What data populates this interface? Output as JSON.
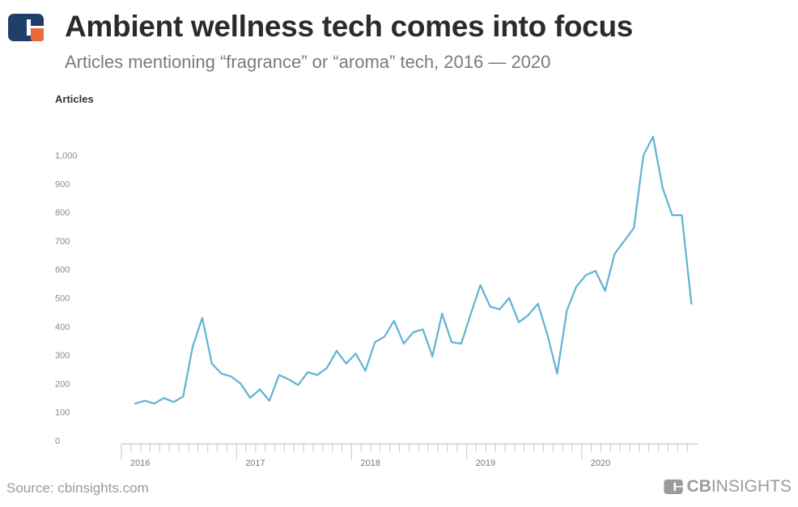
{
  "header": {
    "title": "Ambient wellness tech comes into focus",
    "subtitle": "Articles mentioning “fragrance” or “aroma” tech, 2016 — 2020"
  },
  "footer": {
    "source": "Source: cbinsights.com",
    "brand_bold": "CB",
    "brand_rest": "INSIGHTS"
  },
  "colors": {
    "line": "#5fb3d3",
    "logo_blue": "#1f3f6a",
    "logo_orange": "#ea6a36"
  },
  "chart_data": {
    "type": "line",
    "title": "Ambient wellness tech comes into focus",
    "subtitle": "Articles mentioning “fragrance” or “aroma” tech, 2016 — 2020",
    "xlabel": "",
    "ylabel": "Articles",
    "ylim": [
      0,
      1000
    ],
    "yticks": [
      0,
      100,
      200,
      300,
      400,
      500,
      600,
      700,
      800,
      900,
      1000
    ],
    "grid": false,
    "year_labels": [
      "2016",
      "2017",
      "2018",
      "2019",
      "2020"
    ],
    "series": [
      {
        "name": "Articles",
        "start": "2016-01",
        "frequency": "monthly",
        "values": [
          130,
          140,
          130,
          150,
          135,
          155,
          330,
          430,
          270,
          235,
          225,
          200,
          150,
          180,
          140,
          230,
          215,
          195,
          240,
          230,
          255,
          315,
          270,
          305,
          245,
          345,
          365,
          420,
          340,
          380,
          390,
          295,
          445,
          345,
          340,
          445,
          545,
          470,
          460,
          500,
          415,
          440,
          480,
          370,
          235,
          455,
          540,
          580,
          595,
          525,
          655,
          700,
          745,
          1000,
          1065,
          885,
          790,
          790,
          480
        ]
      }
    ]
  }
}
